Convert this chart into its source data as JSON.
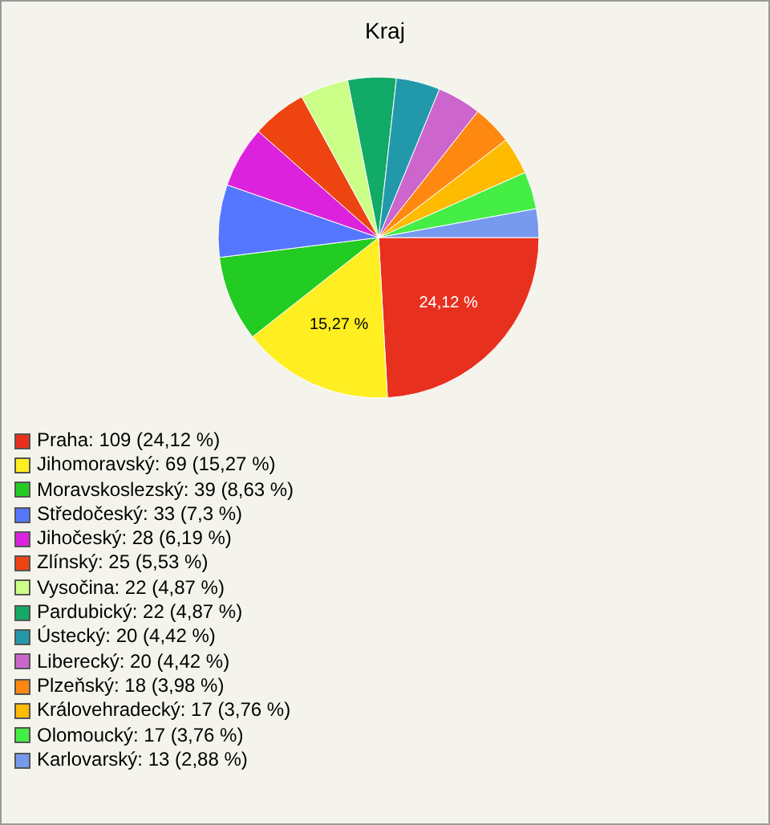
{
  "chart_data": {
    "type": "pie",
    "title": "Kraj",
    "categories": [
      "Praha: 109 (24,12 %)",
      "Jihomoravský: 69 (15,27 %)",
      "Moravskoslezský: 39 (8,63 %)",
      "Středočeský: 33 (7,3 %)",
      "Jihočeský: 28 (6,19 %)",
      "Zlínský: 25 (5,53 %)",
      "Vysočina: 22 (4,87 %)",
      "Pardubický: 22 (4,87 %)",
      "Ústecký: 20 (4,42 %)",
      "Liberecký: 20 (4,42 %)",
      "Plzeňský: 18 (3,98 %)",
      "Královehradecký: 17 (3,76 %)",
      "Olomoucký: 17 (3,76 %)",
      "Karlovarský: 13 (2,88 %)"
    ],
    "values": [
      24.12,
      15.27,
      8.63,
      7.3,
      6.19,
      5.53,
      4.87,
      4.87,
      4.42,
      4.42,
      3.98,
      3.76,
      3.76,
      2.88
    ],
    "colors": [
      "#e8301f",
      "#ffee22",
      "#22cc22",
      "#5577ff",
      "#dd22dd",
      "#ee4411",
      "#ccff88",
      "#11aa66",
      "#2299aa",
      "#cc66cc",
      "#ff8811",
      "#ffbb00",
      "#44ee44",
      "#7799ee"
    ],
    "value_labels": [
      "24,12 %",
      "15,27 %",
      null,
      null,
      null,
      null,
      null,
      null,
      null,
      null,
      null,
      null,
      null,
      null
    ],
    "legend": "bottom left"
  }
}
